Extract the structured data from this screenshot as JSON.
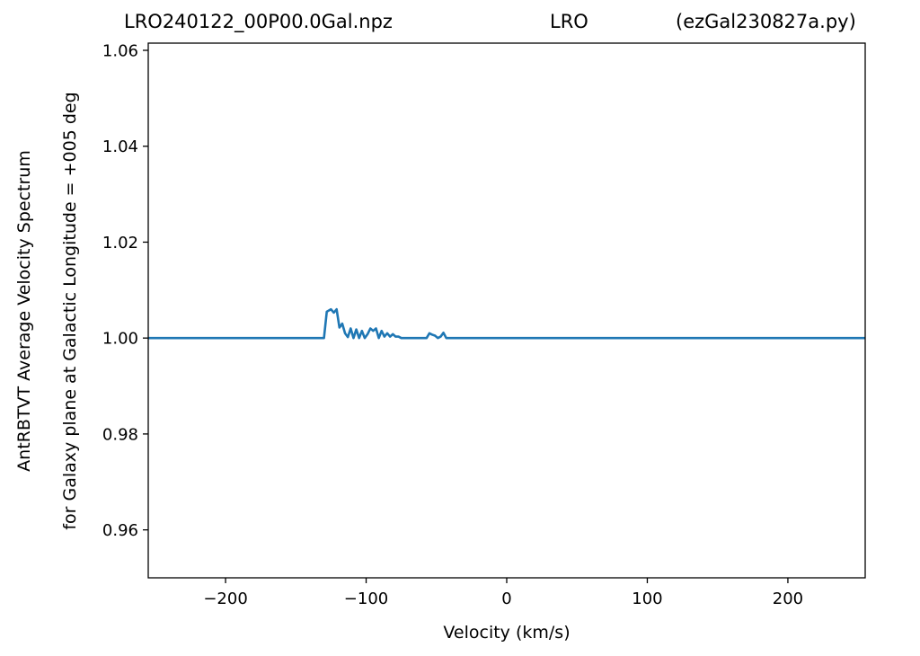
{
  "header": {
    "left": "LRO240122_00P00.0Gal.npz",
    "center": "LRO",
    "right": "(ezGal230827a.py)"
  },
  "colors": {
    "line": "#1f77b4",
    "axes": "#000000",
    "background": "#ffffff"
  },
  "chart_data": {
    "type": "line",
    "title": "",
    "xlabel": "Velocity (km/s)",
    "ylabel_lines": [
      "AntRBTVT Average Velocity Spectrum",
      "for Galaxy plane at Galactic Longitude = +005 deg"
    ],
    "xlim": [
      -255,
      255
    ],
    "ylim": [
      0.95,
      1.0615
    ],
    "x_ticks": [
      -200,
      -100,
      0,
      100,
      200
    ],
    "x_tick_labels": [
      "−200",
      "−100",
      "0",
      "100",
      "200"
    ],
    "y_ticks": [
      0.96,
      0.98,
      1.0,
      1.02,
      1.04,
      1.06
    ],
    "y_tick_labels": [
      "0.96",
      "0.98",
      "1.00",
      "1.02",
      "1.04",
      "1.06"
    ],
    "grid": false,
    "series": [
      {
        "x": [
          -255,
          -130,
          -128,
          -125,
          -123,
          -121,
          -119,
          -117,
          -115,
          -113,
          -111,
          -109,
          -107,
          -105,
          -103,
          -101,
          -99,
          -97,
          -95,
          -93,
          -91,
          -89,
          -87,
          -85,
          -83,
          -81,
          -79,
          -77,
          -75,
          -73,
          -57,
          -55,
          -53,
          -51,
          -49,
          -47,
          -45,
          -43,
          -41,
          255
        ],
        "y": [
          1.0,
          1.0,
          1.0055,
          1.006,
          1.0053,
          1.006,
          1.0022,
          1.003,
          1.001,
          1.0002,
          1.002,
          1.0,
          1.0018,
          1.0,
          1.0015,
          1.0,
          1.0008,
          1.002,
          1.0015,
          1.002,
          1.0,
          1.0015,
          1.0003,
          1.001,
          1.0003,
          1.0008,
          1.0003,
          1.0003,
          1.0,
          1.0,
          1.0,
          1.001,
          1.0007,
          1.0005,
          1.0,
          1.0003,
          1.0011,
          1.0,
          1.0,
          1.0
        ]
      }
    ]
  }
}
